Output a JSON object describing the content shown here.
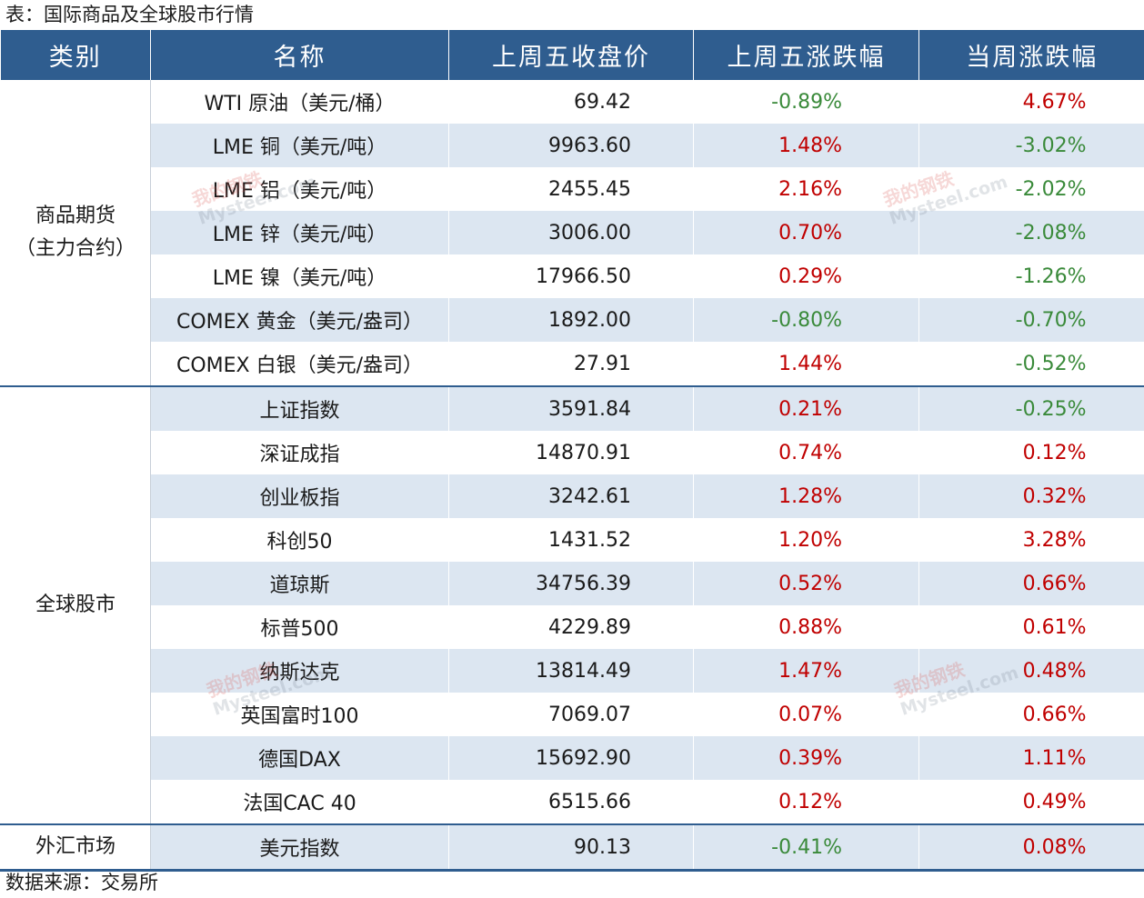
{
  "caption": "表：国际商品及全球股市行情",
  "source": "数据来源：交易所",
  "headers": [
    "类别",
    "名称",
    "上周五收盘价",
    "上周五涨跌幅",
    "当周涨跌幅"
  ],
  "categories": [
    "商品期货\n（主力合约）",
    "全球股市",
    "外汇市场"
  ],
  "rows": [
    {
      "name": "WTI 原油（美元/桶）",
      "close": "69.42",
      "fri": "-0.89%",
      "week": "4.67%"
    },
    {
      "name": "LME 铜（美元/吨）",
      "close": "9963.60",
      "fri": "1.48%",
      "week": "-3.02%"
    },
    {
      "name": "LME 铝（美元/吨）",
      "close": "2455.45",
      "fri": "2.16%",
      "week": "-2.02%"
    },
    {
      "name": "LME 锌（美元/吨）",
      "close": "3006.00",
      "fri": "0.70%",
      "week": "-2.08%"
    },
    {
      "name": "LME 镍（美元/吨）",
      "close": "17966.50",
      "fri": "0.29%",
      "week": "-1.26%"
    },
    {
      "name": "COMEX 黄金（美元/盎司）",
      "close": "1892.00",
      "fri": "-0.80%",
      "week": "-0.70%"
    },
    {
      "name": "COMEX 白银（美元/盎司）",
      "close": "27.91",
      "fri": "1.44%",
      "week": "-0.52%"
    },
    {
      "name": "上证指数",
      "close": "3591.84",
      "fri": "0.21%",
      "week": "-0.25%"
    },
    {
      "name": "深证成指",
      "close": "14870.91",
      "fri": "0.74%",
      "week": "0.12%"
    },
    {
      "name": "创业板指",
      "close": "3242.61",
      "fri": "1.28%",
      "week": "0.32%"
    },
    {
      "name": "科创50",
      "close": "1431.52",
      "fri": "1.20%",
      "week": "3.28%"
    },
    {
      "name": "道琼斯",
      "close": "34756.39",
      "fri": "0.52%",
      "week": "0.66%"
    },
    {
      "name": "标普500",
      "close": "4229.89",
      "fri": "0.88%",
      "week": "0.61%"
    },
    {
      "name": "纳斯达克",
      "close": "13814.49",
      "fri": "1.47%",
      "week": "0.48%"
    },
    {
      "name": "英国富时100",
      "close": "7069.07",
      "fri": "0.07%",
      "week": "0.66%"
    },
    {
      "name": "德国DAX",
      "close": "15692.90",
      "fri": "0.39%",
      "week": "1.11%"
    },
    {
      "name": "法国CAC 40",
      "close": "6515.66",
      "fri": "0.12%",
      "week": "0.49%"
    },
    {
      "name": "美元指数",
      "close": "90.13",
      "fri": "-0.41%",
      "week": "0.08%"
    }
  ],
  "watermark": {
    "cn": "我的钢铁",
    "en": "Mysteel.com"
  },
  "colors": {
    "header_bg": "#2f5d8f",
    "row_shade": "#dce6f1",
    "up": "#c00000",
    "down": "#3a8a3a"
  }
}
